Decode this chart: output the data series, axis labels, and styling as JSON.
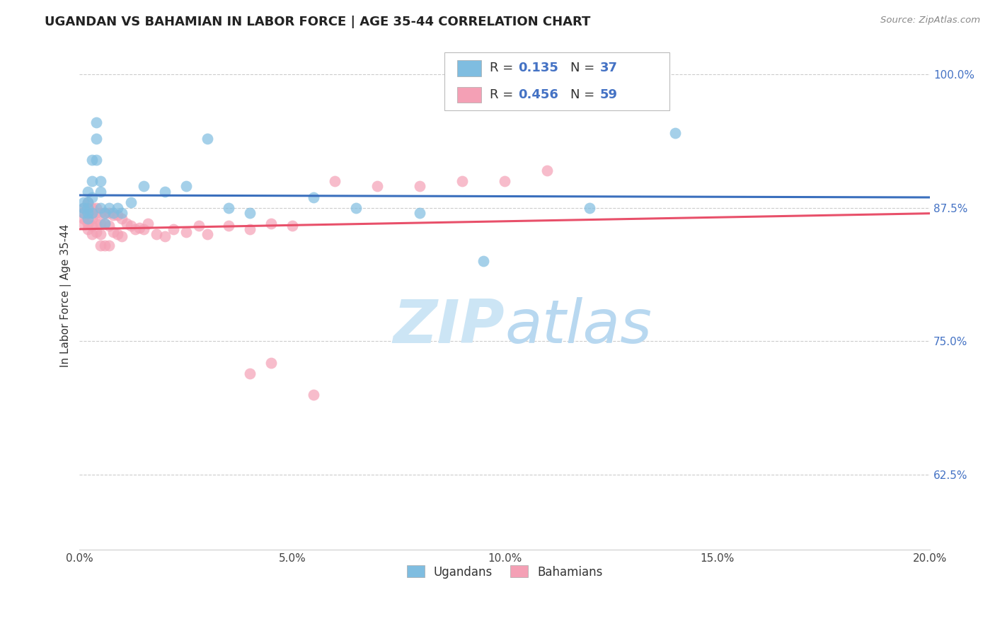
{
  "title": "UGANDAN VS BAHAMIAN IN LABOR FORCE | AGE 35-44 CORRELATION CHART",
  "source_text": "Source: ZipAtlas.com",
  "ylabel_text": "In Labor Force | Age 35-44",
  "xlim": [
    0.0,
    0.2
  ],
  "ylim": [
    0.555,
    1.03
  ],
  "yticks": [
    0.625,
    0.75,
    0.875,
    1.0
  ],
  "ytick_labels": [
    "62.5%",
    "75.0%",
    "87.5%",
    "100.0%"
  ],
  "xticks": [
    0.0,
    0.05,
    0.1,
    0.15,
    0.2
  ],
  "xtick_labels": [
    "0.0%",
    "5.0%",
    "10.0%",
    "15.0%",
    "20.0%"
  ],
  "ugandan_R": 0.135,
  "ugandan_N": 37,
  "bahamian_R": 0.456,
  "bahamian_N": 59,
  "ugandan_color": "#7fbde0",
  "bahamian_color": "#f4a0b5",
  "ugandan_line_color": "#3a6fbd",
  "bahamian_line_color": "#e8506a",
  "watermark_text": "ZIPatlas",
  "watermark_color": "#cce5f5",
  "ugandan_x": [
    0.001,
    0.001,
    0.001,
    0.002,
    0.002,
    0.002,
    0.002,
    0.002,
    0.003,
    0.003,
    0.003,
    0.003,
    0.004,
    0.004,
    0.004,
    0.005,
    0.005,
    0.005,
    0.006,
    0.006,
    0.007,
    0.008,
    0.009,
    0.01,
    0.012,
    0.015,
    0.02,
    0.025,
    0.03,
    0.035,
    0.04,
    0.055,
    0.065,
    0.08,
    0.095,
    0.12,
    0.14
  ],
  "ugandan_y": [
    0.88,
    0.875,
    0.87,
    0.89,
    0.88,
    0.875,
    0.87,
    0.865,
    0.92,
    0.9,
    0.885,
    0.87,
    0.955,
    0.94,
    0.92,
    0.9,
    0.89,
    0.875,
    0.87,
    0.86,
    0.875,
    0.87,
    0.875,
    0.87,
    0.88,
    0.895,
    0.89,
    0.895,
    0.94,
    0.875,
    0.87,
    0.885,
    0.875,
    0.87,
    0.825,
    0.875,
    0.945
  ],
  "bahamian_x": [
    0.001,
    0.001,
    0.001,
    0.001,
    0.002,
    0.002,
    0.002,
    0.002,
    0.002,
    0.003,
    0.003,
    0.003,
    0.003,
    0.003,
    0.004,
    0.004,
    0.004,
    0.004,
    0.005,
    0.005,
    0.005,
    0.005,
    0.006,
    0.006,
    0.006,
    0.007,
    0.007,
    0.007,
    0.008,
    0.008,
    0.009,
    0.009,
    0.01,
    0.01,
    0.011,
    0.012,
    0.013,
    0.014,
    0.015,
    0.016,
    0.018,
    0.02,
    0.022,
    0.025,
    0.028,
    0.03,
    0.035,
    0.04,
    0.045,
    0.05,
    0.06,
    0.07,
    0.08,
    0.09,
    0.1,
    0.11,
    0.04,
    0.045,
    0.055
  ],
  "bahamian_y": [
    0.875,
    0.87,
    0.865,
    0.86,
    0.88,
    0.875,
    0.87,
    0.86,
    0.855,
    0.875,
    0.87,
    0.865,
    0.858,
    0.85,
    0.875,
    0.87,
    0.86,
    0.852,
    0.87,
    0.86,
    0.85,
    0.84,
    0.87,
    0.86,
    0.84,
    0.87,
    0.858,
    0.84,
    0.868,
    0.852,
    0.868,
    0.85,
    0.865,
    0.848,
    0.86,
    0.858,
    0.855,
    0.856,
    0.855,
    0.86,
    0.85,
    0.848,
    0.855,
    0.852,
    0.858,
    0.85,
    0.858,
    0.855,
    0.86,
    0.858,
    0.9,
    0.895,
    0.895,
    0.9,
    0.9,
    0.91,
    0.72,
    0.73,
    0.7
  ]
}
